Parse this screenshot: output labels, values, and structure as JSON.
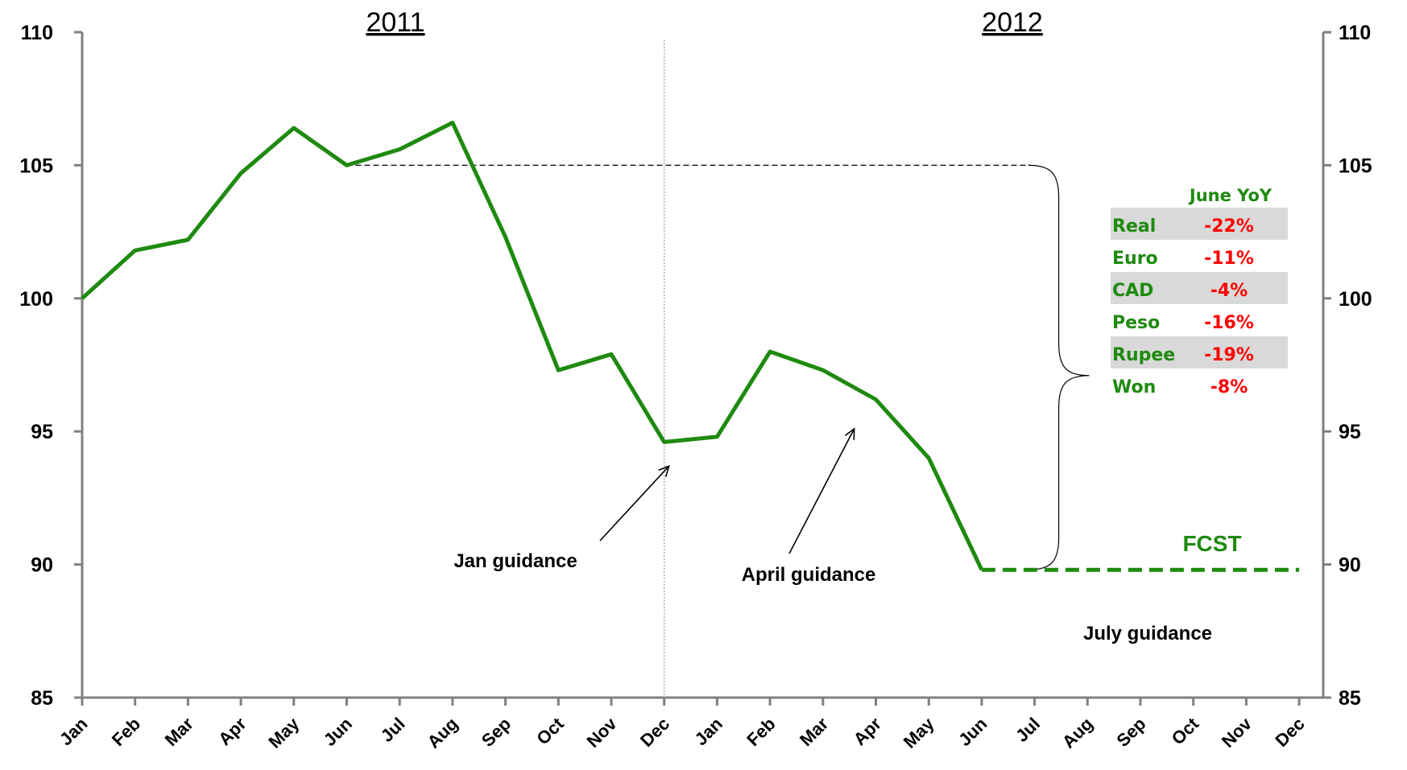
{
  "chart_data": {
    "type": "line",
    "categories": [
      "Jan",
      "Feb",
      "Mar",
      "Apr",
      "May",
      "Jun",
      "Jul",
      "Aug",
      "Sep",
      "Oct",
      "Nov",
      "Dec",
      "Jan",
      "Feb",
      "Mar",
      "Apr",
      "May",
      "Jun",
      "Jul",
      "Aug",
      "Sep",
      "Oct",
      "Nov",
      "Dec"
    ],
    "year_labels": [
      "2011",
      "2012"
    ],
    "ylim": [
      85,
      110
    ],
    "yticks": [
      85,
      90,
      95,
      100,
      105,
      110
    ],
    "grid": false,
    "series": [
      {
        "style": "solid",
        "color": "#1e8a0f",
        "values": [
          100.0,
          101.8,
          102.2,
          104.7,
          106.4,
          105.0,
          105.6,
          106.6,
          102.3,
          97.3,
          97.9,
          94.6,
          94.8,
          98.0,
          97.3,
          96.2,
          94.0,
          89.8,
          null,
          null,
          null,
          null,
          null,
          null
        ]
      },
      {
        "name": "FCST",
        "style": "dashed",
        "color": "#1e8a0f",
        "values": [
          null,
          null,
          null,
          null,
          null,
          null,
          null,
          null,
          null,
          null,
          null,
          null,
          null,
          null,
          null,
          null,
          null,
          89.8,
          89.8,
          89.8,
          89.8,
          89.8,
          89.8,
          89.8
        ]
      }
    ],
    "reference_line": {
      "from_index": 5,
      "to_index": 18,
      "value": 105.0
    },
    "divider_index": 11,
    "annotations": [
      {
        "text": "Jan guidance",
        "arrow_to_index": 11,
        "arrow_to_value": 93.7
      },
      {
        "text": "April guidance",
        "arrow_to_index": 14.5,
        "arrow_to_value": 95.1
      },
      {
        "text": "July guidance"
      }
    ],
    "table": {
      "header": "June YoY",
      "rows": [
        {
          "name": "Real",
          "value": "-22%"
        },
        {
          "name": "Euro",
          "value": "-11%"
        },
        {
          "name": "CAD",
          "value": "-4%"
        },
        {
          "name": "Peso",
          "value": "-16%"
        },
        {
          "name": "Rupee",
          "value": "-19%"
        },
        {
          "name": "Won",
          "value": "-8%"
        }
      ]
    },
    "colors": {
      "line": "#1e8a0f",
      "axis": "#808080",
      "negative": "#ff0000",
      "band": "#d9d9d9"
    }
  }
}
